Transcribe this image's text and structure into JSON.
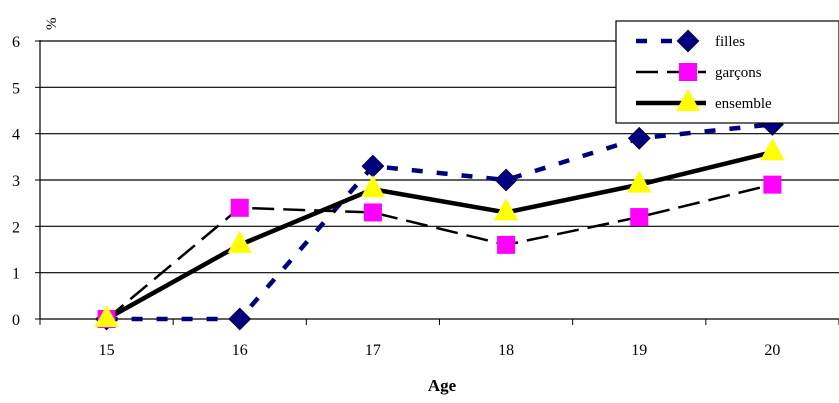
{
  "chart_data": {
    "type": "line",
    "title": "",
    "xlabel": "Age",
    "ylabel": "%",
    "categories": [
      "15",
      "16",
      "17",
      "18",
      "19",
      "20"
    ],
    "yticks": [
      "0",
      "1",
      "2",
      "3",
      "4",
      "5",
      "6"
    ],
    "ylim": [
      0,
      6
    ],
    "grid": "horizontal",
    "legend_position": "top-right",
    "series": [
      {
        "name": "filles",
        "values": [
          0,
          0,
          3.3,
          3.0,
          3.9,
          4.2
        ],
        "color": "#000080",
        "marker_color": "#000080",
        "marker": "diamond",
        "line_style": "dotted-thick"
      },
      {
        "name": "garçons",
        "values": [
          0,
          2.4,
          2.3,
          1.6,
          2.2,
          2.9
        ],
        "color": "#000000",
        "marker_color": "#FF00FF",
        "marker": "square",
        "line_style": "dashed"
      },
      {
        "name": "ensemble",
        "values": [
          0,
          1.6,
          2.8,
          2.3,
          2.9,
          3.6
        ],
        "color": "#000000",
        "marker_color": "#FFFF00",
        "marker": "triangle",
        "line_style": "solid-thick"
      }
    ]
  }
}
